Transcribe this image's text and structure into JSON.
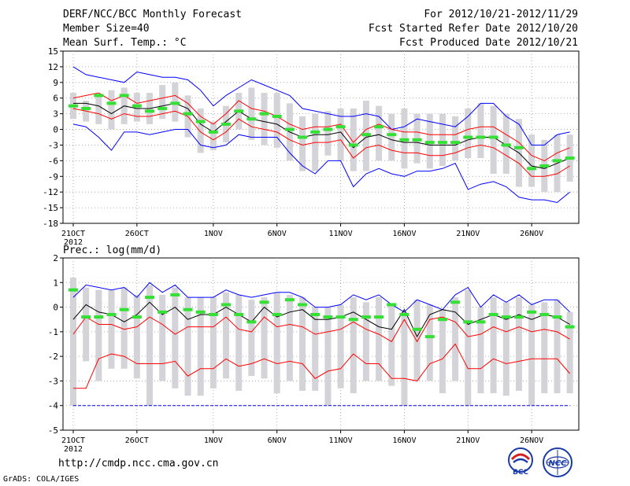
{
  "header": {
    "title": "DERF/NCC/BCC Monthly Forecast",
    "member_size": "Member Size=40",
    "variable": "Mean Surf. Temp.: °C",
    "period": "For 2012/10/21-2012/11/29",
    "started": "Fcst Started Refer Date 2012/10/20",
    "produced": "Fcst Produced Date 2012/10/21"
  },
  "footer": {
    "url": "http://cmdp.ncc.cma.gov.cn",
    "credit": "GrADS: COLA/IGES",
    "logo1_text": "BCC",
    "logo2_text": "NCC"
  },
  "colors": {
    "envelope": "#0000ff",
    "mean": "#000000",
    "spread": "#ff0000",
    "ensemble_range": "#d3d3d8",
    "observed": "#33e033",
    "grid": "#9a9a9a"
  },
  "x_ticks": {
    "labels": [
      "21OCT",
      "26OCT",
      "1NOV",
      "6NOV",
      "11NOV",
      "16NOV",
      "21NOV",
      "26NOV"
    ],
    "day_index": [
      0,
      5,
      11,
      16,
      21,
      26,
      31,
      36
    ],
    "year_label": "2012"
  },
  "chart_data": [
    {
      "type": "line",
      "title": "Mean Surf. Temp.: °C",
      "ylim": [
        -18,
        15
      ],
      "yticks": [
        15,
        12,
        9,
        6,
        3,
        0,
        -3,
        -6,
        -9,
        -12,
        -15,
        -18
      ],
      "x": [
        0,
        1,
        2,
        3,
        4,
        5,
        6,
        7,
        8,
        9,
        10,
        11,
        12,
        13,
        14,
        15,
        16,
        17,
        18,
        19,
        20,
        21,
        22,
        23,
        24,
        25,
        26,
        27,
        28,
        29,
        30,
        31,
        32,
        33,
        34,
        35,
        36,
        37,
        38,
        39
      ],
      "series": [
        {
          "name": "max",
          "values": [
            12,
            10.5,
            10,
            9.5,
            9,
            11,
            10.5,
            10,
            10,
            9.5,
            7.5,
            4.5,
            6.5,
            8,
            9.5,
            8.5,
            7.5,
            6.5,
            4,
            3.5,
            3,
            2.5,
            2.5,
            3,
            2.5,
            0,
            0.5,
            2,
            1.5,
            1,
            0.5,
            2.5,
            5,
            5,
            2.5,
            1,
            -3,
            -3,
            -1,
            -0.5
          ]
        },
        {
          "name": "upper",
          "values": [
            6,
            6.5,
            7,
            5.5,
            6.5,
            5,
            5.5,
            6,
            6.5,
            5,
            2.5,
            1,
            3,
            5.5,
            4,
            3.5,
            2.5,
            1,
            0,
            0.5,
            0.5,
            1,
            -2.5,
            0,
            1,
            0,
            -0.5,
            -0.5,
            -1,
            -1,
            -1,
            0,
            0.5,
            0.5,
            -1,
            -2.5,
            -5,
            -6,
            -4.5,
            -3.5
          ]
        },
        {
          "name": "mean",
          "values": [
            5,
            5,
            4.5,
            3,
            4.5,
            4,
            4,
            4.5,
            5,
            4,
            1,
            -0.5,
            1.5,
            3.5,
            2,
            1.5,
            1,
            -0.5,
            -1.5,
            -1,
            -1,
            -0.5,
            -3.5,
            -1.5,
            -1,
            -2,
            -2.5,
            -2.5,
            -3,
            -3,
            -3,
            -2,
            -1.5,
            -1.5,
            -3,
            -4.5,
            -7,
            -7.5,
            -6.5,
            -5.5
          ]
        },
        {
          "name": "lower",
          "values": [
            4,
            3.5,
            3,
            2,
            3,
            2.5,
            2.5,
            3,
            3.5,
            2.5,
            -0.5,
            -2,
            -0.5,
            2,
            0.5,
            0,
            -0.5,
            -2,
            -3,
            -2.5,
            -2.5,
            -2,
            -5.5,
            -3.5,
            -3,
            -4,
            -4.5,
            -4.5,
            -5,
            -5,
            -4.5,
            -3.5,
            -3,
            -3.5,
            -5,
            -6.5,
            -9,
            -9,
            -8.5,
            -7
          ]
        },
        {
          "name": "min",
          "values": [
            1,
            0.5,
            -1.5,
            -4,
            -0.5,
            -0.5,
            -1,
            -0.5,
            0,
            0,
            -3,
            -3.5,
            -3,
            -1,
            -1.5,
            -1.5,
            -1.5,
            -4.5,
            -7,
            -8.5,
            -6,
            -6,
            -11,
            -8.5,
            -7.5,
            -8.5,
            -9,
            -8,
            -8,
            -7.5,
            -6.5,
            -11.5,
            -10.5,
            -10,
            -11,
            -13,
            -13.5,
            -13.5,
            -14,
            -12
          ]
        }
      ],
      "range_bars": {
        "high": [
          7,
          5.5,
          6.5,
          7.5,
          8,
          7,
          7,
          8.5,
          9,
          6.5,
          4,
          1.5,
          4.5,
          7,
          8,
          7,
          7,
          5,
          2.5,
          3,
          3.5,
          4,
          4,
          5.5,
          4.5,
          3,
          4,
          3,
          3,
          3,
          2.5,
          4,
          5,
          4.5,
          3,
          2,
          -1,
          -2,
          -1,
          -1
        ],
        "low": [
          2,
          1.5,
          1,
          0,
          1,
          1.5,
          1,
          2,
          1.5,
          -1.5,
          -4.5,
          -4,
          -2.5,
          0,
          -2,
          -3,
          -3.5,
          -6,
          -8,
          -8,
          -5,
          -6,
          -8,
          -8,
          -6,
          -6,
          -7.5,
          -6.5,
          -7.5,
          -7,
          -6,
          -5.5,
          -5.5,
          -8.5,
          -8.5,
          -11,
          -11,
          -12,
          -12,
          -10
        ]
      },
      "observed": [
        4.5,
        4,
        6.5,
        5,
        6.5,
        4.5,
        3.5,
        4,
        5,
        3,
        1.5,
        -0.5,
        1,
        3.5,
        2,
        3,
        2.5,
        0,
        -1.5,
        -0.5,
        0,
        0.5,
        -3,
        -1,
        0.5,
        -1,
        -2,
        -2,
        -2.5,
        -2.5,
        -2.5,
        -1.5,
        -1.5,
        -1.5,
        -3,
        -3.5,
        -7.5,
        -7,
        -6,
        -5.5
      ]
    },
    {
      "type": "line",
      "title": "Prec.: log(mm/d)",
      "ylim": [
        -5,
        2
      ],
      "yticks": [
        2,
        1,
        0,
        -1,
        -2,
        -3,
        -4,
        -5
      ],
      "x": [
        0,
        1,
        2,
        3,
        4,
        5,
        6,
        7,
        8,
        9,
        10,
        11,
        12,
        13,
        14,
        15,
        16,
        17,
        18,
        19,
        20,
        21,
        22,
        23,
        24,
        25,
        26,
        27,
        28,
        29,
        30,
        31,
        32,
        33,
        34,
        35,
        36,
        37,
        38,
        39
      ],
      "series": [
        {
          "name": "max",
          "values": [
            0.4,
            0.9,
            0.8,
            0.7,
            0.8,
            0.4,
            1,
            0.6,
            0.9,
            0.4,
            0.4,
            0.4,
            0.7,
            0.5,
            0.4,
            0.5,
            0.6,
            0.6,
            0.4,
            0,
            0,
            0.1,
            0.5,
            0.3,
            0.5,
            0.1,
            -0.2,
            0.3,
            0.1,
            -0.1,
            0.5,
            0.8,
            0,
            0.5,
            0.2,
            0.5,
            0.1,
            0.3,
            0.3,
            -0.2
          ]
        },
        {
          "name": "mean",
          "values": [
            -0.5,
            0.1,
            -0.2,
            -0.3,
            -0.6,
            -0.3,
            0.2,
            -0.3,
            0,
            -0.5,
            -0.3,
            -0.3,
            0,
            -0.3,
            -0.6,
            0,
            -0.4,
            -0.2,
            -0.1,
            -0.5,
            -0.5,
            -0.4,
            -0.2,
            -0.5,
            -0.8,
            -0.9,
            -0.1,
            -1.2,
            -0.3,
            -0.1,
            -0.2,
            -0.7,
            -0.5,
            -0.3,
            -0.5,
            -0.3,
            -0.5,
            -0.3,
            -0.4,
            -0.7
          ]
        },
        {
          "name": "upper",
          "values": [
            -1.1,
            -0.4,
            -0.7,
            -0.7,
            -0.9,
            -0.8,
            -0.4,
            -0.7,
            -1.1,
            -0.8,
            -0.8,
            -0.8,
            -0.4,
            -0.9,
            -1,
            -0.4,
            -0.8,
            -0.7,
            -0.8,
            -1.1,
            -1,
            -0.9,
            -0.6,
            -0.9,
            -1.1,
            -1.4,
            -0.5,
            -1.4,
            -0.5,
            -0.4,
            -0.6,
            -1.2,
            -1.1,
            -0.8,
            -1,
            -0.8,
            -1,
            -0.9,
            -1,
            -1.3
          ]
        },
        {
          "name": "lower",
          "values": [
            -3.3,
            -3.3,
            -2.1,
            -1.9,
            -2,
            -2.3,
            -2.3,
            -2.3,
            -2.2,
            -2.8,
            -2.5,
            -2.5,
            -2.1,
            -2.4,
            -2.3,
            -2.1,
            -2.3,
            -2.2,
            -2.3,
            -2.9,
            -2.6,
            -2.5,
            -1.9,
            -2.3,
            -2.3,
            -2.9,
            -2.9,
            -3,
            -2.3,
            -2.1,
            -1.5,
            -2.5,
            -2.5,
            -2.1,
            -2.3,
            -2.2,
            -2.1,
            -2.1,
            -2.1,
            -2.7
          ]
        },
        {
          "name": "min",
          "values": [
            -4,
            -4,
            -4,
            -4,
            -4,
            -4,
            -4,
            -4,
            -4,
            -4,
            -4,
            -4,
            -4,
            -4,
            -4,
            -4,
            -4,
            -4,
            -4,
            -4,
            -4,
            -4,
            -4,
            -4,
            -4,
            -4,
            -4,
            -4,
            -4,
            -4,
            -4,
            -4,
            -4,
            -4,
            -4,
            -4,
            -4,
            -4,
            -4,
            -4
          ]
        }
      ],
      "range_bars": {
        "high": [
          1.2,
          0.8,
          0.7,
          0.7,
          0.8,
          0.5,
          0.9,
          0.5,
          0.8,
          0.4,
          0.4,
          0.4,
          0.6,
          0.5,
          0.3,
          0.4,
          0.6,
          0.5,
          0.4,
          0,
          0,
          0.1,
          0.4,
          0.2,
          0.4,
          0.1,
          -0.2,
          0.3,
          0.1,
          -0.1,
          0.4,
          0.7,
          0,
          0.4,
          0.2,
          0.4,
          0.1,
          0.2,
          0.3,
          -0.2
        ],
        "low": [
          -4,
          -2.2,
          -3,
          -2.5,
          -2.5,
          -2.9,
          -4,
          -3,
          -3.3,
          -3.6,
          -3.6,
          -3.3,
          -2.9,
          -3.4,
          -2.8,
          -2.9,
          -3.5,
          -3,
          -3.4,
          -3.4,
          -4,
          -3.3,
          -3.5,
          -3,
          -3,
          -3.2,
          -4,
          -3,
          -3,
          -3.5,
          -3,
          -4,
          -3.5,
          -3.5,
          -3.6,
          -3.4,
          -4,
          -3.5,
          -3.5,
          -3.5
        ]
      },
      "observed": [
        0.7,
        -0.4,
        -0.4,
        -0.3,
        -0.1,
        -0.4,
        0.4,
        -0.2,
        0.5,
        -0.1,
        -0.2,
        -0.3,
        0.1,
        -0.3,
        -0.6,
        0.2,
        -0.3,
        0.3,
        0.1,
        -0.3,
        -0.4,
        -0.4,
        -0.5,
        -0.4,
        -0.4,
        0.1,
        -0.3,
        -0.9,
        -1.2,
        -0.5,
        0.2,
        -0.6,
        -0.6,
        -0.3,
        -0.4,
        -0.4,
        -0.2,
        -0.3,
        -0.4,
        -0.8
      ]
    }
  ]
}
